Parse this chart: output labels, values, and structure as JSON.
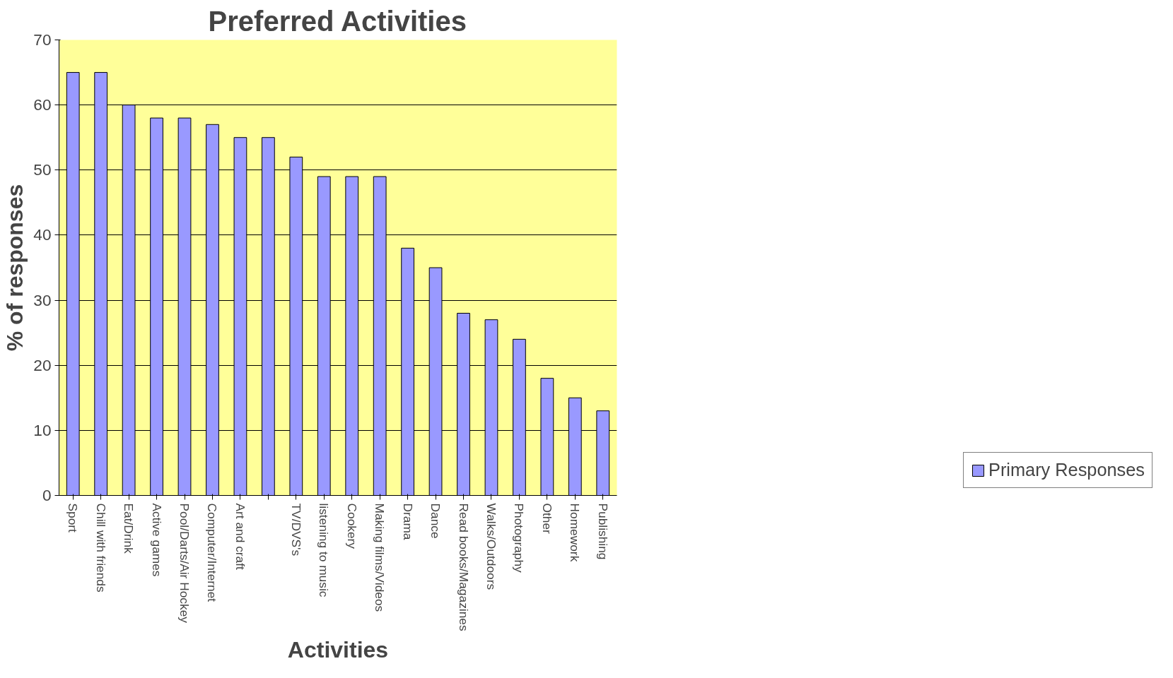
{
  "chart_data": {
    "type": "bar",
    "title": "Preferred Activities",
    "xlabel": "Activities",
    "ylabel": "% of responses",
    "categories": [
      "Sport",
      "Chill with friends",
      "Eat/Drink",
      "Active games",
      "Pool/Darts/Air Hockey",
      "Computer/Internet",
      "Art and craft",
      null,
      "TV/DVS's",
      "listening to music",
      "Cookery",
      "Making films/Videos",
      "Drama",
      "Dance",
      "Read books/Magazines",
      "Walks/Outdoors",
      "Photography",
      "Other",
      "Homework",
      "Publishing"
    ],
    "series": [
      {
        "name": "Primary Responses",
        "color": "#9999ff",
        "values": [
          65,
          65,
          60,
          58,
          58,
          57,
          55,
          55,
          52,
          49,
          49,
          49,
          38,
          35,
          28,
          27,
          24,
          18,
          15,
          13
        ]
      }
    ],
    "ylim": [
      0,
      70
    ],
    "yticks": [
      0,
      10,
      20,
      30,
      40,
      50,
      60,
      70
    ],
    "grid": "y",
    "legend": "bottom right"
  }
}
